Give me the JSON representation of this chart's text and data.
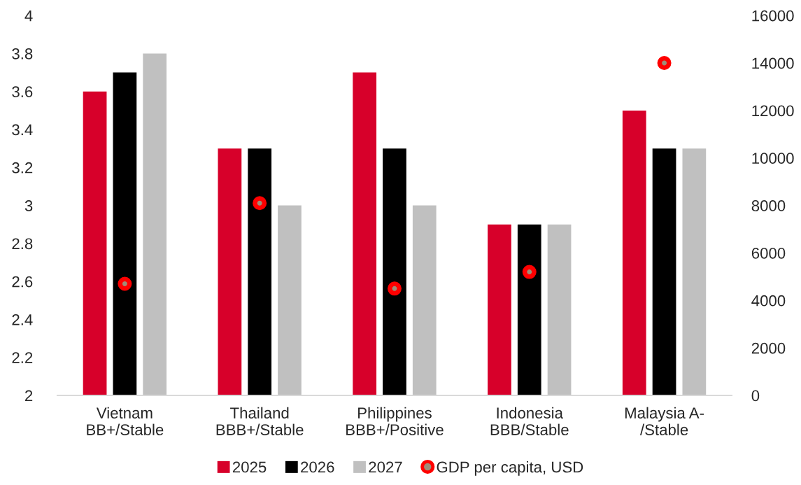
{
  "chart_data": {
    "type": "bar",
    "categories": [
      "Vietnam\nBB+/Stable",
      "Thailand\nBBB+/Stable",
      "Philippines\nBBB+/Positive",
      "Indonesia\nBBB/Stable",
      "Malaysia A-\n/Stable"
    ],
    "series": [
      {
        "name": "2025",
        "color": "#d7002a",
        "values": [
          3.6,
          3.3,
          3.7,
          2.9,
          3.5
        ]
      },
      {
        "name": "2026",
        "color": "#000000",
        "values": [
          3.7,
          3.3,
          3.3,
          2.9,
          3.3
        ]
      },
      {
        "name": "2027",
        "color": "#c0c0c0",
        "values": [
          3.8,
          3.0,
          3.0,
          2.9,
          3.3
        ]
      },
      {
        "name": "GDP per capita, USD",
        "type": "scatter",
        "axis": "y2",
        "color": "#ff0000",
        "marker": "circle",
        "x": [
          "Vietnam\nBB+/Stable",
          "Thailand\nBBB+/Stable",
          "Philippines\nBBB+/Positive",
          "Indonesia\nBBB/Stable",
          "Malaysia A-\n/Stable"
        ],
        "values": [
          4700,
          8100,
          4500,
          5200,
          14000
        ]
      }
    ],
    "ylim": [
      2,
      4
    ],
    "yticks": [
      2,
      2.2,
      2.4,
      2.6,
      2.8,
      3,
      3.2,
      3.4,
      3.6,
      3.8,
      4
    ],
    "y2lim": [
      0,
      16000
    ],
    "y2ticks": [
      0,
      2000,
      4000,
      6000,
      8000,
      10000,
      12000,
      14000,
      16000
    ],
    "legend": "bottom",
    "grid": false
  }
}
